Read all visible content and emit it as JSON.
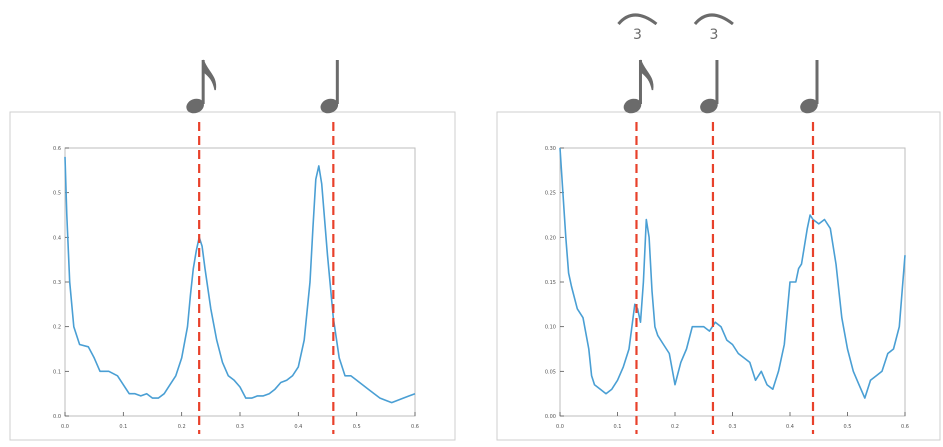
{
  "colors": {
    "line": "#4a9fd4",
    "marker": "#e8412b",
    "note": "#6b6b6b",
    "frame": "#cfcfcf",
    "axis": "#555555"
  },
  "chart_data": [
    {
      "type": "line",
      "xlim": [
        0.0,
        0.6
      ],
      "ylim": [
        0.0,
        0.6
      ],
      "xticks": [
        "0.0",
        "0.1",
        "0.2",
        "0.3",
        "0.4",
        "0.5",
        "0.6"
      ],
      "yticks": [
        "0.0",
        "0.1",
        "0.2",
        "0.3",
        "0.4",
        "0.5",
        "0.6"
      ],
      "grid": false,
      "series": [
        {
          "x": [
            0.0,
            0.003,
            0.008,
            0.015,
            0.025,
            0.04,
            0.05,
            0.06,
            0.075,
            0.09,
            0.1,
            0.11,
            0.12,
            0.13,
            0.14,
            0.15,
            0.16,
            0.17,
            0.18,
            0.19,
            0.2,
            0.21,
            0.215,
            0.22,
            0.225,
            0.23,
            0.235,
            0.24,
            0.25,
            0.26,
            0.27,
            0.28,
            0.29,
            0.3,
            0.31,
            0.32,
            0.33,
            0.34,
            0.35,
            0.36,
            0.37,
            0.38,
            0.39,
            0.4,
            0.41,
            0.42,
            0.425,
            0.43,
            0.435,
            0.44,
            0.45,
            0.46,
            0.47,
            0.48,
            0.49,
            0.5,
            0.51,
            0.52,
            0.53,
            0.54,
            0.55,
            0.56,
            0.57,
            0.58,
            0.59,
            0.6
          ],
          "values": [
            0.58,
            0.45,
            0.3,
            0.2,
            0.16,
            0.155,
            0.13,
            0.1,
            0.1,
            0.09,
            0.07,
            0.05,
            0.05,
            0.045,
            0.05,
            0.04,
            0.04,
            0.05,
            0.07,
            0.09,
            0.13,
            0.2,
            0.27,
            0.33,
            0.37,
            0.4,
            0.38,
            0.33,
            0.24,
            0.17,
            0.12,
            0.09,
            0.08,
            0.065,
            0.04,
            0.04,
            0.045,
            0.045,
            0.05,
            0.06,
            0.075,
            0.08,
            0.09,
            0.11,
            0.17,
            0.3,
            0.42,
            0.53,
            0.56,
            0.52,
            0.36,
            0.22,
            0.13,
            0.09,
            0.09,
            0.08,
            0.07,
            0.06,
            0.05,
            0.04,
            0.035,
            0.03,
            0.035,
            0.04,
            0.045,
            0.05
          ]
        }
      ],
      "markers": [
        0.23,
        0.46
      ],
      "notes": [
        {
          "x": 0.23,
          "kind": "eighth",
          "label": ""
        },
        {
          "x": 0.46,
          "kind": "quarter",
          "label": ""
        }
      ]
    },
    {
      "type": "line",
      "xlim": [
        0.0,
        0.6
      ],
      "ylim": [
        0.0,
        0.3
      ],
      "xticks": [
        "0.0",
        "0.1",
        "0.2",
        "0.3",
        "0.4",
        "0.5",
        "0.6"
      ],
      "yticks": [
        "0.00",
        "0.05",
        "0.10",
        "0.15",
        "0.20",
        "0.25",
        "0.30"
      ],
      "grid": false,
      "series": [
        {
          "x": [
            0.0,
            0.005,
            0.01,
            0.015,
            0.02,
            0.03,
            0.04,
            0.05,
            0.055,
            0.06,
            0.07,
            0.08,
            0.09,
            0.1,
            0.11,
            0.12,
            0.125,
            0.13,
            0.135,
            0.14,
            0.145,
            0.15,
            0.155,
            0.16,
            0.165,
            0.17,
            0.18,
            0.19,
            0.2,
            0.21,
            0.22,
            0.23,
            0.24,
            0.25,
            0.26,
            0.27,
            0.28,
            0.29,
            0.3,
            0.31,
            0.32,
            0.33,
            0.34,
            0.35,
            0.36,
            0.37,
            0.38,
            0.39,
            0.4,
            0.41,
            0.415,
            0.42,
            0.425,
            0.43,
            0.435,
            0.44,
            0.45,
            0.46,
            0.47,
            0.48,
            0.49,
            0.5,
            0.51,
            0.52,
            0.53,
            0.54,
            0.55,
            0.56,
            0.57,
            0.58,
            0.59,
            0.6
          ],
          "values": [
            0.3,
            0.25,
            0.2,
            0.16,
            0.145,
            0.12,
            0.11,
            0.075,
            0.045,
            0.035,
            0.03,
            0.025,
            0.03,
            0.04,
            0.055,
            0.075,
            0.1,
            0.125,
            0.12,
            0.105,
            0.15,
            0.22,
            0.2,
            0.14,
            0.1,
            0.09,
            0.08,
            0.07,
            0.035,
            0.06,
            0.075,
            0.1,
            0.1,
            0.1,
            0.095,
            0.105,
            0.1,
            0.085,
            0.08,
            0.07,
            0.065,
            0.06,
            0.04,
            0.05,
            0.035,
            0.03,
            0.05,
            0.08,
            0.15,
            0.15,
            0.165,
            0.17,
            0.19,
            0.21,
            0.225,
            0.22,
            0.215,
            0.22,
            0.21,
            0.17,
            0.11,
            0.075,
            0.05,
            0.035,
            0.02,
            0.04,
            0.045,
            0.05,
            0.07,
            0.075,
            0.1,
            0.18
          ]
        }
      ],
      "markers": [
        0.133,
        0.266,
        0.44
      ],
      "notes": [
        {
          "x": 0.133,
          "kind": "eighth",
          "label": "3"
        },
        {
          "x": 0.266,
          "kind": "quarter",
          "label": "3"
        },
        {
          "x": 0.44,
          "kind": "quarter",
          "label": ""
        }
      ]
    }
  ]
}
